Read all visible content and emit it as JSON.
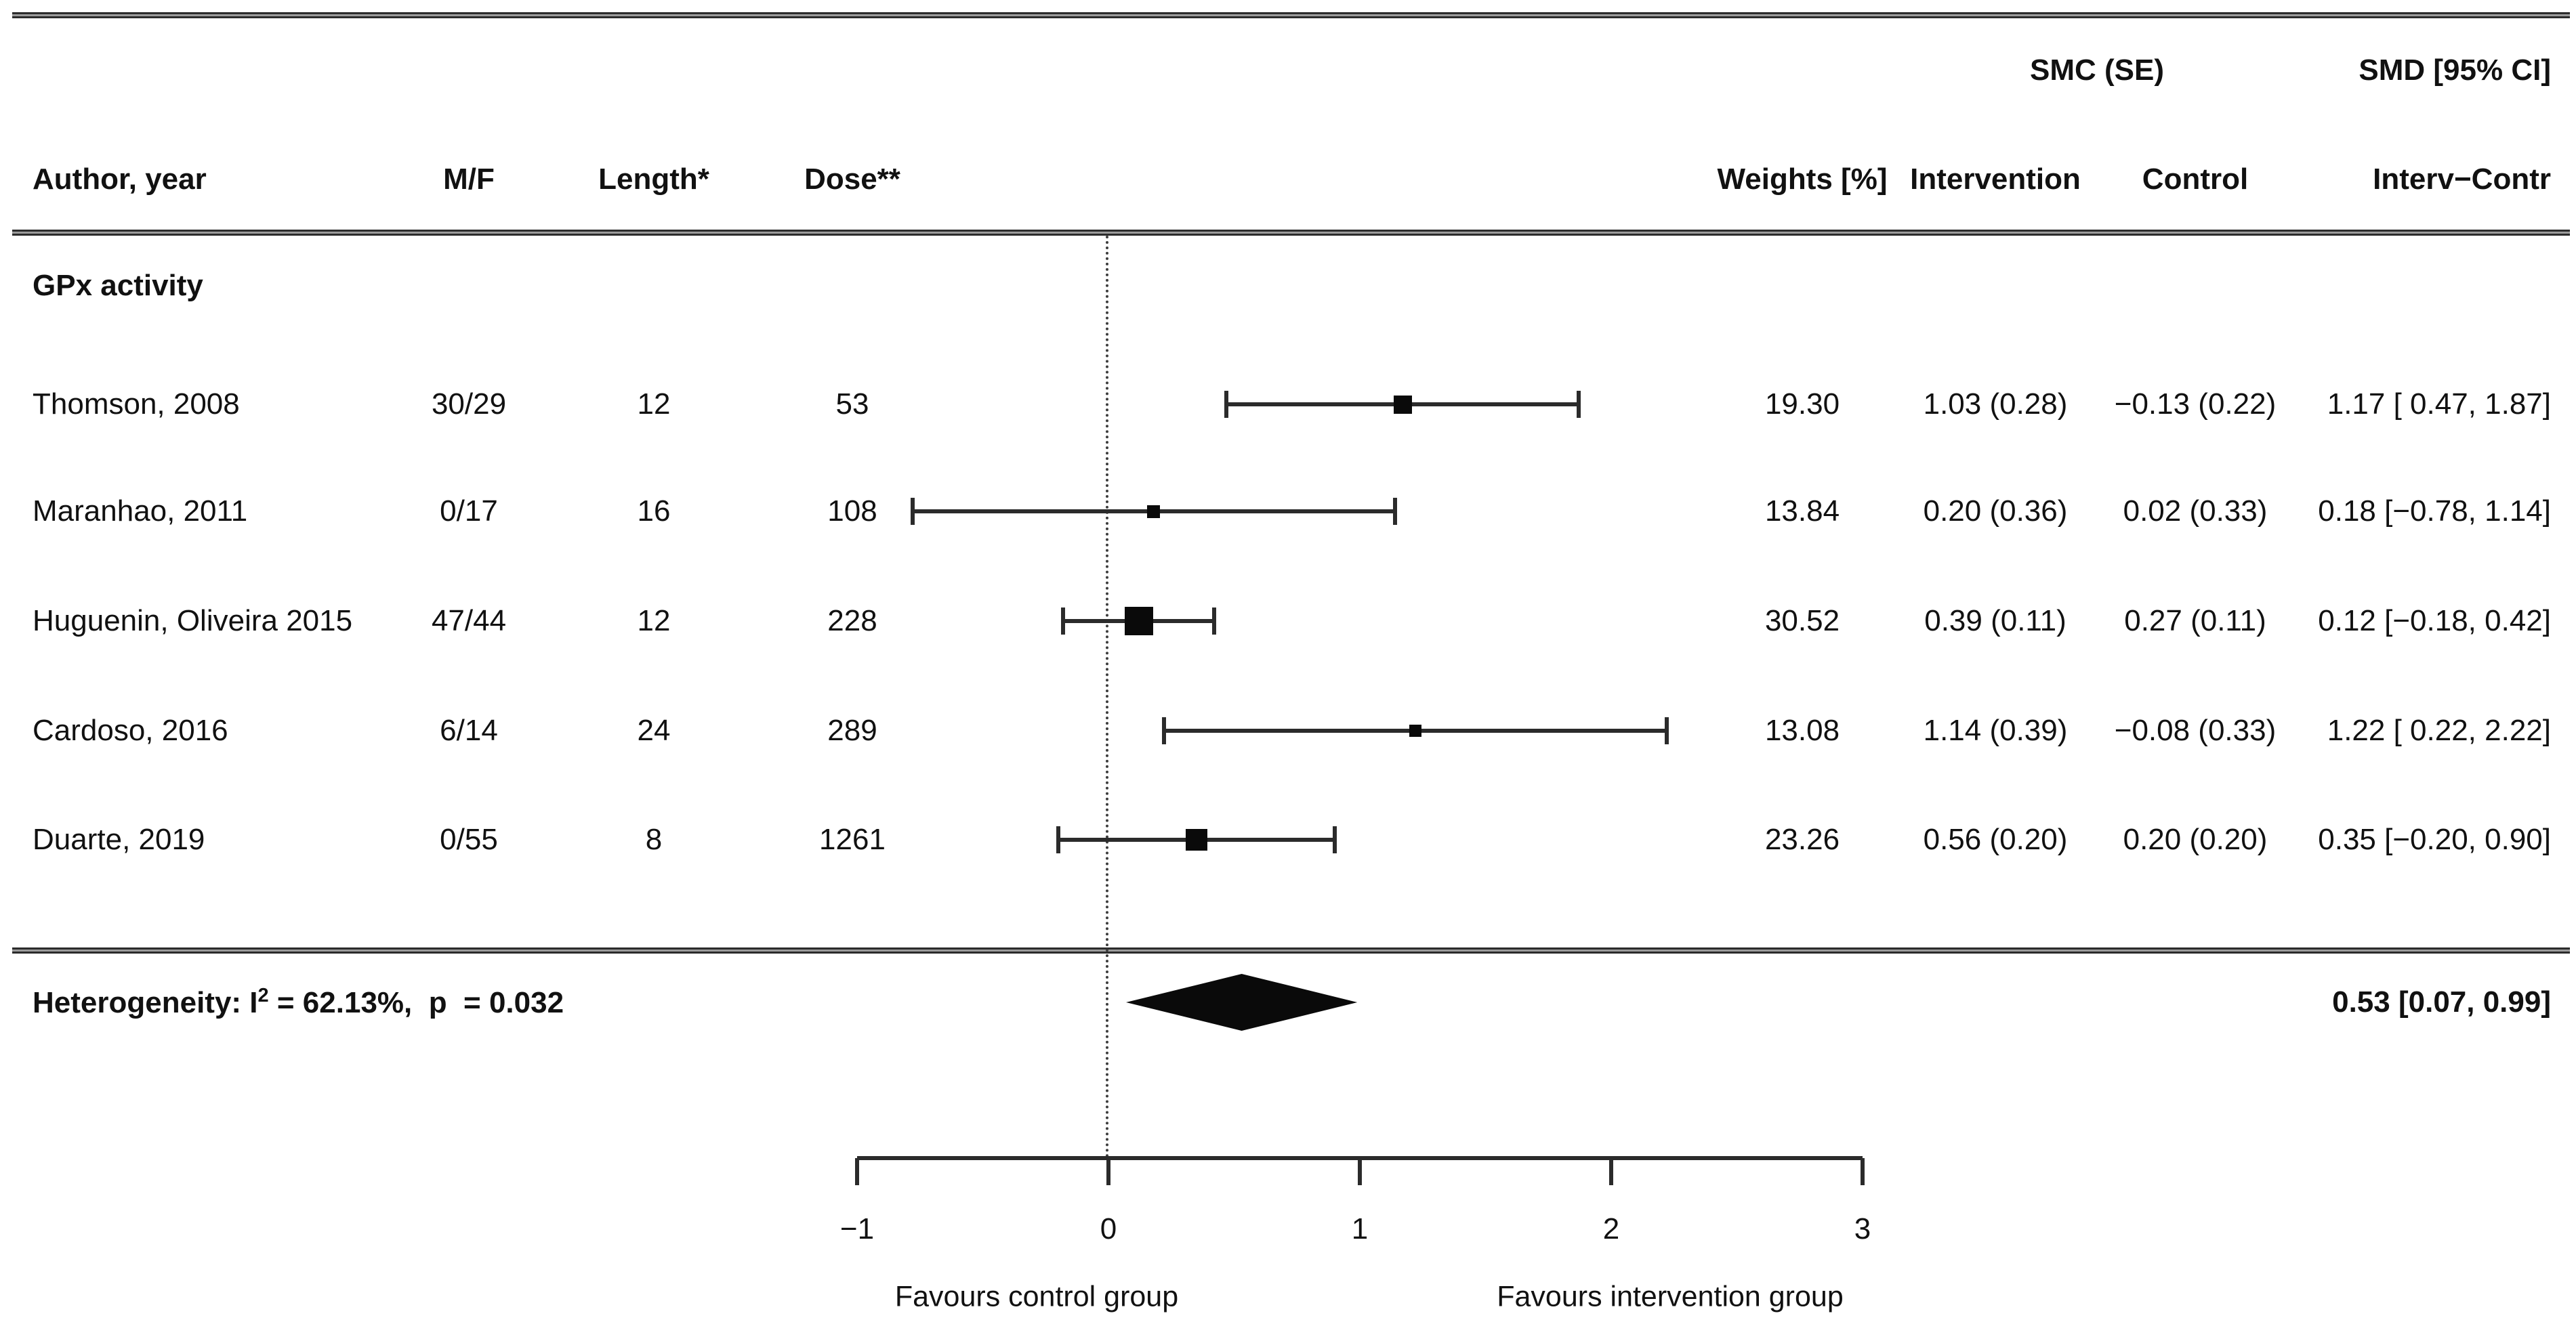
{
  "header": {
    "col_author": "Author, year",
    "col_mf": "M/F",
    "col_length": "Length*",
    "col_dose": "Dose**",
    "col_weights": "Weights [%]",
    "group_smc": "SMC (SE)",
    "col_intervention": "Intervention",
    "col_control": "Control",
    "col_smd_group": "SMD [95% CI]",
    "col_interv_contr": "Interv−Contr"
  },
  "section_label": "GPx activity",
  "table": {
    "rows": [
      {
        "author": "Thomson, 2008",
        "mf": "30/29",
        "length": "12",
        "dose": "53",
        "weight": "19.30",
        "smc_intervention": "1.03 (0.28)",
        "smc_control": "−0.13 (0.22)",
        "smd": "1.17 [ 0.47, 1.87]"
      },
      {
        "author": "Maranhao, 2011",
        "mf": "0/17",
        "length": "16",
        "dose": "108",
        "weight": "13.84",
        "smc_intervention": "0.20 (0.36)",
        "smc_control": "0.02 (0.33)",
        "smd": "0.18 [−0.78, 1.14]"
      },
      {
        "author": "Huguenin, Oliveira 2015",
        "mf": "47/44",
        "length": "12",
        "dose": "228",
        "weight": "30.52",
        "smc_intervention": "0.39 (0.11)",
        "smc_control": "0.27 (0.11)",
        "smd": "0.12 [−0.18, 0.42]"
      },
      {
        "author": "Cardoso, 2016",
        "mf": "6/14",
        "length": "24",
        "dose": "289",
        "weight": "13.08",
        "smc_intervention": "1.14 (0.39)",
        "smc_control": "−0.08 (0.33)",
        "smd": "1.22 [ 0.22, 2.22]"
      },
      {
        "author": "Duarte, 2019",
        "mf": "0/55",
        "length": "8",
        "dose": "1261",
        "weight": "23.26",
        "smc_intervention": "0.56 (0.20)",
        "smc_control": "0.20 (0.20)",
        "smd": "0.35 [−0.20, 0.90]"
      }
    ]
  },
  "summary": {
    "het_prefix": "Heterogeneity: I",
    "het_sup": "2",
    "het_rest": " = 62.13%,  p  = 0.032",
    "smd": "0.53 [0.07, 0.99]"
  },
  "axis": {
    "tick_labels": [
      "−1",
      "0",
      "1",
      "2",
      "3"
    ],
    "favours_left": "Favours control group",
    "favours_right": "Favours intervention group"
  },
  "chart_data": {
    "type": "forest",
    "title": "GPx activity",
    "xlim": [
      -1,
      3
    ],
    "x_axis": {
      "ticks": [
        -1,
        0,
        1,
        2,
        3
      ],
      "zero_line": 0,
      "label_left": "Favours control group",
      "label_right": "Favours intervention group"
    },
    "studies": [
      {
        "name": "Thomson, 2008",
        "male_female": "30/29",
        "length_weeks": 12,
        "dose": 53,
        "mean": 1.17,
        "ci_low": 0.47,
        "ci_high": 1.87,
        "weight_pct": 19.3,
        "smc_intervention": "1.03 (0.28)",
        "smc_control": "−0.13 (0.22)"
      },
      {
        "name": "Maranhao, 2011",
        "male_female": "0/17",
        "length_weeks": 16,
        "dose": 108,
        "mean": 0.18,
        "ci_low": -0.78,
        "ci_high": 1.14,
        "weight_pct": 13.84,
        "smc_intervention": "0.20 (0.36)",
        "smc_control": "0.02 (0.33)"
      },
      {
        "name": "Huguenin, Oliveira 2015",
        "male_female": "47/44",
        "length_weeks": 12,
        "dose": 228,
        "mean": 0.12,
        "ci_low": -0.18,
        "ci_high": 0.42,
        "weight_pct": 30.52,
        "smc_intervention": "0.39 (0.11)",
        "smc_control": "0.27 (0.11)"
      },
      {
        "name": "Cardoso, 2016",
        "male_female": "6/14",
        "length_weeks": 24,
        "dose": 289,
        "mean": 1.22,
        "ci_low": 0.22,
        "ci_high": 2.22,
        "weight_pct": 13.08,
        "smc_intervention": "1.14 (0.39)",
        "smc_control": "−0.08 (0.33)"
      },
      {
        "name": "Duarte, 2019",
        "male_female": "0/55",
        "length_weeks": 8,
        "dose": 1261,
        "mean": 0.35,
        "ci_low": -0.2,
        "ci_high": 0.9,
        "weight_pct": 23.26,
        "smc_intervention": "0.56 (0.20)",
        "smc_control": "0.20 (0.20)"
      }
    ],
    "summary": {
      "mean": 0.53,
      "ci_low": 0.07,
      "ci_high": 0.99,
      "i_squared_pct": 62.13,
      "p_value": 0.032
    }
  }
}
